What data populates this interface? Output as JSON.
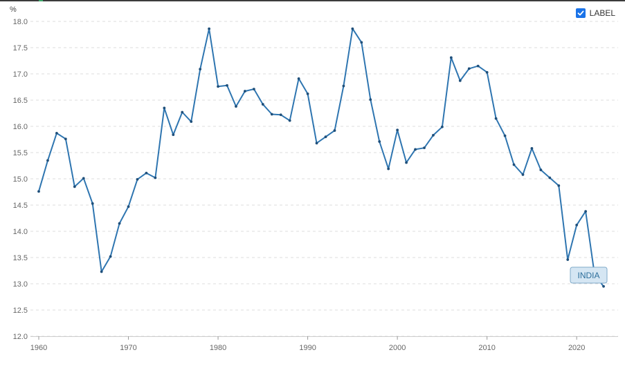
{
  "legend": {
    "label": "LABEL",
    "checked": true
  },
  "chart_data": {
    "type": "line",
    "unit": "%",
    "ylim": [
      12.0,
      18.0
    ],
    "yticks": [
      "12.0",
      "12.5",
      "13.0",
      "13.5",
      "14.0",
      "14.5",
      "15.0",
      "15.5",
      "16.0",
      "16.5",
      "17.0",
      "17.5",
      "18.0"
    ],
    "xlim": [
      1960,
      2024
    ],
    "xticks": [
      "1960",
      "1970",
      "1980",
      "1990",
      "2000",
      "2010",
      "2020"
    ],
    "grid": "horizontal-dashed",
    "line_color": "#2e75b0",
    "series": [
      {
        "name": "INDIA",
        "x": [
          1960,
          1961,
          1962,
          1963,
          1964,
          1965,
          1966,
          1967,
          1968,
          1969,
          1970,
          1971,
          1972,
          1973,
          1974,
          1975,
          1976,
          1977,
          1978,
          1979,
          1980,
          1981,
          1982,
          1983,
          1984,
          1985,
          1986,
          1987,
          1988,
          1989,
          1990,
          1991,
          1992,
          1993,
          1994,
          1995,
          1996,
          1997,
          1998,
          1999,
          2000,
          2001,
          2002,
          2003,
          2004,
          2005,
          2006,
          2007,
          2008,
          2009,
          2010,
          2011,
          2012,
          2013,
          2014,
          2015,
          2016,
          2017,
          2018,
          2019,
          2020,
          2021,
          2022,
          2023
        ],
        "values": [
          14.76,
          15.35,
          15.87,
          15.76,
          14.85,
          15.01,
          14.53,
          13.23,
          13.52,
          14.15,
          14.47,
          14.99,
          15.11,
          15.02,
          16.35,
          15.84,
          16.27,
          16.09,
          17.09,
          17.86,
          16.76,
          16.78,
          16.38,
          16.67,
          16.71,
          16.42,
          16.23,
          16.22,
          16.11,
          16.91,
          16.62,
          15.68,
          15.8,
          15.92,
          16.77,
          17.86,
          17.6,
          16.51,
          15.71,
          15.19,
          15.93,
          15.31,
          15.56,
          15.59,
          15.83,
          15.99,
          17.31,
          16.87,
          17.1,
          17.15,
          17.03,
          16.15,
          15.82,
          15.27,
          15.08,
          15.58,
          15.17,
          15.02,
          14.87,
          13.46,
          14.12,
          14.38,
          13.17,
          12.95
        ]
      }
    ]
  }
}
